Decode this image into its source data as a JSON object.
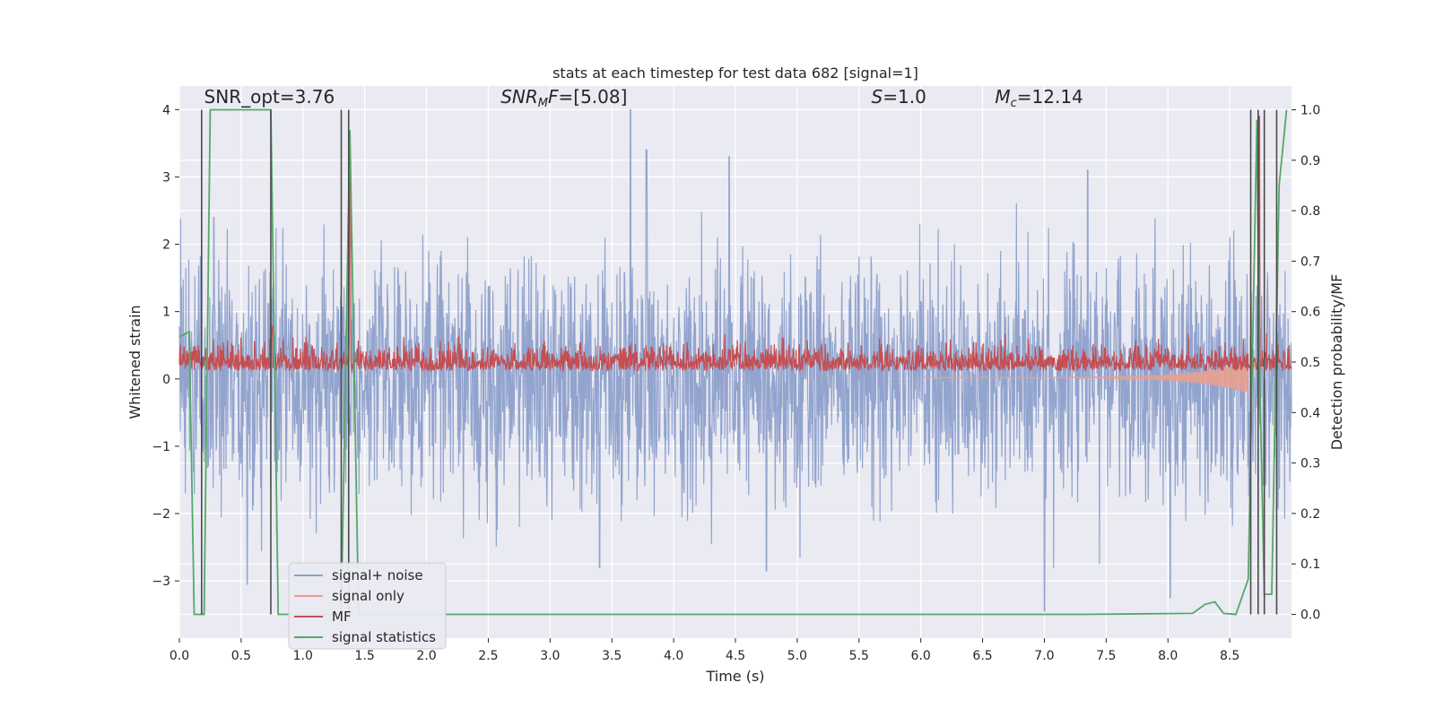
{
  "chart_data": {
    "type": "line",
    "title": "stats at each timestep for test data 682 [signal=1]",
    "xlabel": "Time (s)",
    "ylabel": "Whitened strain",
    "y2label": "Detection probability/MF",
    "xlim": [
      0.0,
      9.0
    ],
    "ylim": [
      -3.85,
      4.35
    ],
    "y2lim": [
      -0.047,
      1.047
    ],
    "xticks": [
      0.0,
      0.5,
      1.0,
      1.5,
      2.0,
      2.5,
      3.0,
      3.5,
      4.0,
      4.5,
      5.0,
      5.5,
      6.0,
      6.5,
      7.0,
      7.5,
      8.0,
      8.5
    ],
    "yticks": [
      -3,
      -2,
      -1,
      0,
      1,
      2,
      3,
      4
    ],
    "y2ticks": [
      0.0,
      0.1,
      0.2,
      0.3,
      0.4,
      0.5,
      0.6,
      0.7,
      0.8,
      0.9,
      1.0
    ],
    "grid": true,
    "legend_position": "lower-left",
    "annotations": [
      {
        "text": "SNR_opt=3.76",
        "x": 0.2,
        "y": 4.1
      },
      {
        "text": "SNR_MF=[5.08]",
        "x": 2.6,
        "y": 4.1
      },
      {
        "text": "S=1.0",
        "x": 5.6,
        "y": 4.1
      },
      {
        "text": "M_c=12.14",
        "x": 6.6,
        "y": 4.1
      }
    ],
    "detection_marks": [
      0.18,
      0.74,
      1.31,
      1.37,
      8.67,
      8.73,
      8.78,
      8.88
    ],
    "series": [
      {
        "name": "signal+ noise",
        "color": "#8da0cb",
        "axis": "left",
        "kind": "noise",
        "amplitude": 1.2,
        "peaks_above": [
          [
            3.65,
            4.0
          ],
          [
            3.78,
            3.4
          ],
          [
            4.45,
            3.3
          ],
          [
            7.35,
            3.1
          ],
          [
            0.28,
            2.4
          ]
        ],
        "peaks_below": [
          [
            7.0,
            -3.45
          ],
          [
            8.02,
            -3.25
          ],
          [
            0.55,
            -3.05
          ],
          [
            3.4,
            -2.8
          ],
          [
            4.75,
            -2.85
          ]
        ]
      },
      {
        "name": "signal only",
        "color": "#e8a090",
        "axis": "left",
        "kind": "chirp",
        "t_merge": 8.65,
        "final_amplitude": -0.45
      },
      {
        "name": "MF",
        "color": "#c44e52",
        "axis": "left",
        "kind": "mf",
        "baseline": 0.18,
        "spikes": [
          [
            0.75,
            0.78
          ],
          [
            1.38,
            3.4
          ],
          [
            8.74,
            3.9
          ]
        ]
      },
      {
        "name": "signal statistics",
        "color": "#55a868",
        "axis": "right",
        "x": [
          0.0,
          0.08,
          0.12,
          0.2,
          0.25,
          0.74,
          0.8,
          1.31,
          1.38,
          1.45,
          2.0,
          7.3,
          8.2,
          8.3,
          8.38,
          8.45,
          8.55,
          8.65,
          8.72,
          8.74,
          8.78,
          8.84,
          8.9,
          8.96
        ],
        "values": [
          0.55,
          0.56,
          0.0,
          0.0,
          1.0,
          1.0,
          0.0,
          0.0,
          0.96,
          0.0,
          0.0,
          0.0,
          0.002,
          0.02,
          0.025,
          0.002,
          0.0,
          0.07,
          0.98,
          0.5,
          0.04,
          0.04,
          0.85,
          1.0
        ]
      }
    ]
  }
}
